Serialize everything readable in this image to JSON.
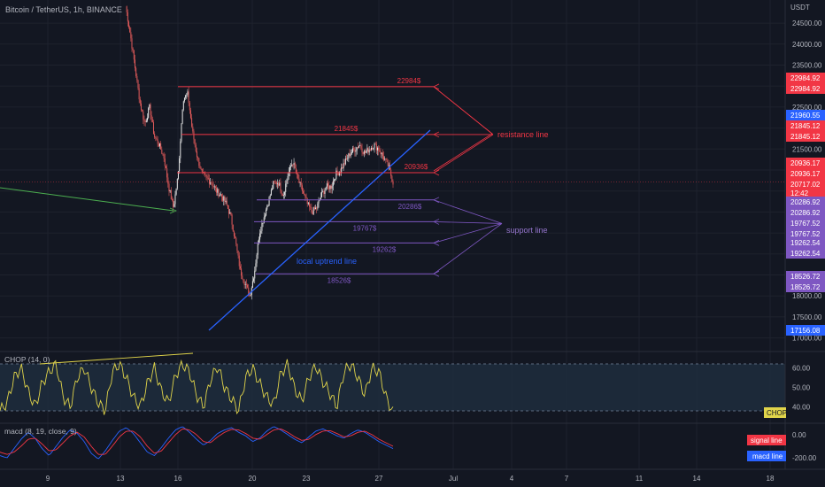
{
  "header": {
    "symbol_title": "Bitcoin / TetherUS, 1h, BINANCE",
    "currency": "USDT"
  },
  "colors": {
    "background": "#131722",
    "grid": "#1e222d",
    "candle_up": "#e6e6e6",
    "candle_down": "#e05a5a",
    "resistance": "#f23645",
    "support": "#7e57c2",
    "uptrend": "#2962ff",
    "chop_line": "#e0d44a",
    "macd_line": "#2962ff",
    "signal_line": "#f23645",
    "green_line": "#4caf50"
  },
  "chart_data": [
    {
      "type": "candlestick",
      "pane": "price",
      "title": "Bitcoin / TetherUS, 1h, BINANCE",
      "ylabel": "USDT",
      "ylim": [
        16950,
        25050
      ],
      "x_ticks": [
        "9",
        "13",
        "16",
        "20",
        "23",
        "27",
        "Jul",
        "4",
        "7",
        "11",
        "14",
        "18"
      ],
      "y_ticks": [
        17000,
        17500,
        18000,
        18500,
        19000,
        19500,
        20000,
        20500,
        21000,
        21500,
        22000,
        22500,
        23000,
        23500,
        24000,
        24500
      ],
      "price_labels": [
        {
          "value": "22984.92",
          "color": "#f23645"
        },
        {
          "value": "22984.92",
          "color": "#f23645"
        },
        {
          "value": "21960.55",
          "color": "#2962ff"
        },
        {
          "value": "21845.12",
          "color": "#f23645"
        },
        {
          "value": "21845.12",
          "color": "#f23645"
        },
        {
          "value": "20936.17",
          "color": "#f23645"
        },
        {
          "value": "20936.17",
          "color": "#f23645"
        },
        {
          "value": "20717.02",
          "color": "#f23645",
          "sub": "12:42"
        },
        {
          "value": "20286.92",
          "color": "#7e57c2"
        },
        {
          "value": "20286.92",
          "color": "#7e57c2"
        },
        {
          "value": "19767.52",
          "color": "#7e57c2"
        },
        {
          "value": "19767.52",
          "color": "#7e57c2"
        },
        {
          "value": "19262.54",
          "color": "#7e57c2"
        },
        {
          "value": "19262.54",
          "color": "#7e57c2"
        },
        {
          "value": "18526.72",
          "color": "#7e57c2"
        },
        {
          "value": "18526.72",
          "color": "#7e57c2"
        },
        {
          "value": "17156.08",
          "color": "#2962ff"
        }
      ],
      "horizontal_levels": [
        {
          "label": "22984$",
          "value": 22984.92,
          "kind": "resistance"
        },
        {
          "label": "21845$",
          "value": 21845.12,
          "kind": "resistance"
        },
        {
          "label": "20936$",
          "value": 20936.17,
          "kind": "resistance"
        },
        {
          "label": "20286$",
          "value": 20286.92,
          "kind": "support"
        },
        {
          "label": "19767$",
          "value": 19767.52,
          "kind": "support"
        },
        {
          "label": "19262$",
          "value": 19262.54,
          "kind": "support"
        },
        {
          "label": "18526$",
          "value": 18526.72,
          "kind": "support"
        }
      ],
      "annotations": {
        "resistance_label": "resistance line",
        "support_label": "support line",
        "uptrend_label": "local uptrend line"
      },
      "close_path": [
        24900,
        24200,
        23400,
        22600,
        22100,
        22500,
        21800,
        21600,
        21300,
        20600,
        20100,
        20900,
        22700,
        22800,
        21900,
        21300,
        20900,
        20800,
        20700,
        20500,
        20400,
        20200,
        19900,
        19300,
        18600,
        18300,
        18000,
        18600,
        19500,
        19900,
        20300,
        20700,
        20700,
        20400,
        20900,
        21200,
        20800,
        20500,
        20200,
        20000,
        20100,
        20400,
        20600,
        20600,
        20900,
        21000,
        21200,
        21400,
        21500,
        21600,
        21400,
        21500,
        21600,
        21500,
        21300,
        21100,
        20700
      ]
    },
    {
      "type": "line",
      "pane": "indicator",
      "title": "CHOP (14, 0)",
      "series": [
        {
          "name": "CHOP",
          "values": [
            38,
            42,
            55,
            60,
            48,
            40,
            52,
            58,
            62,
            45,
            40,
            55,
            60,
            50,
            42,
            38,
            58,
            62,
            55,
            45,
            40,
            52,
            60,
            48,
            42,
            56,
            62,
            58,
            46,
            40,
            54,
            61,
            50,
            44,
            38,
            55,
            60,
            52,
            45,
            41,
            57,
            62,
            49,
            43,
            55,
            61,
            53,
            47,
            40,
            58,
            62,
            55,
            46,
            60,
            58,
            45,
            37
          ]
        }
      ],
      "y_ticks": [
        40.0,
        50.0,
        60.0
      ],
      "ylim": [
        32,
        68
      ],
      "band": [
        38.2,
        61.8
      ]
    },
    {
      "type": "line",
      "pane": "indicator",
      "title": "macd (8, 19, close, 9)",
      "series": [
        {
          "name": "macd line",
          "values": [
            -180,
            -200,
            -120,
            -40,
            20,
            -30,
            -120,
            -180,
            -100,
            -20,
            40,
            10,
            -60,
            -160,
            -210,
            -140,
            -50,
            30,
            60,
            10,
            -70,
            -150,
            -180,
            -110,
            -30,
            40,
            70,
            20,
            -40,
            -90,
            -50,
            10,
            40,
            60,
            20,
            -10,
            -60,
            -30,
            30,
            70,
            40,
            0,
            -40,
            -70,
            -20,
            30,
            50,
            20,
            -10,
            -30,
            10,
            40,
            20,
            -20,
            -60,
            -90,
            -120
          ]
        },
        {
          "name": "signal line",
          "values": [
            -150,
            -170,
            -150,
            -100,
            -40,
            -30,
            -80,
            -140,
            -130,
            -70,
            -10,
            20,
            -20,
            -100,
            -170,
            -170,
            -100,
            -20,
            30,
            30,
            -20,
            -100,
            -160,
            -140,
            -70,
            0,
            50,
            40,
            0,
            -60,
            -70,
            -20,
            20,
            45,
            40,
            10,
            -30,
            -40,
            0,
            40,
            50,
            20,
            -20,
            -50,
            -40,
            0,
            30,
            35,
            10,
            -20,
            -10,
            20,
            30,
            0,
            -40,
            -70,
            -100
          ]
        }
      ],
      "y_ticks": [
        0.0,
        -200.0
      ],
      "ylim": [
        -290,
        90
      ]
    }
  ]
}
